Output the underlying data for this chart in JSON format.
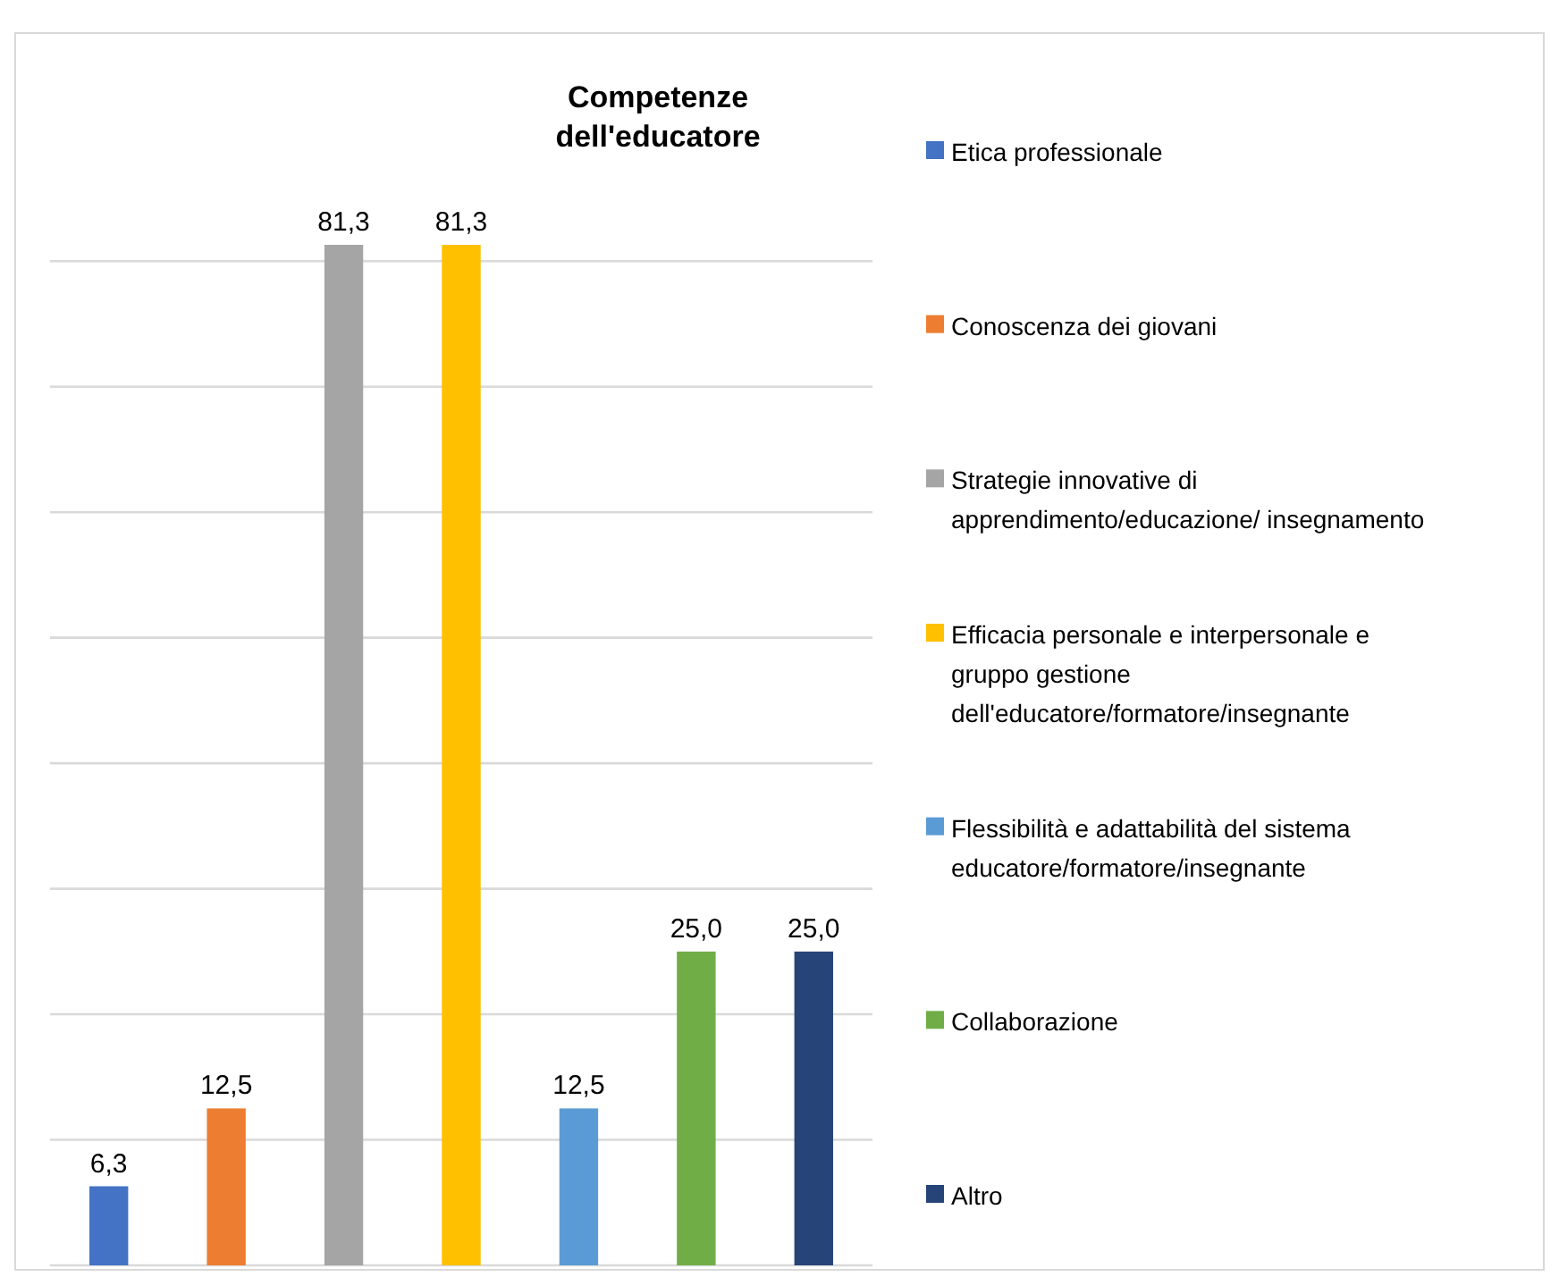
{
  "chart_data": {
    "type": "bar",
    "title": "Competenze dell'educatore",
    "categories": [
      null,
      null,
      null,
      null,
      null,
      null,
      null
    ],
    "stacked": true,
    "series": [
      {
        "name": "Etica professionale",
        "color": "#4472c4",
        "values": [
          6.3,
          null,
          null,
          null,
          null,
          null,
          null
        ],
        "value_labels": [
          "6,3",
          null,
          null,
          null,
          null,
          null,
          null
        ]
      },
      {
        "name": "Conoscenza dei giovani",
        "color": "#ed7d31",
        "values": [
          null,
          12.5,
          null,
          null,
          null,
          null,
          null
        ],
        "value_labels": [
          null,
          "12,5",
          null,
          null,
          null,
          null,
          null
        ]
      },
      {
        "name": "Strategie innovative di apprendimento/educazione/ insegnamento",
        "color": "#a5a5a5",
        "values": [
          null,
          null,
          81.3,
          null,
          null,
          null,
          null
        ],
        "value_labels": [
          null,
          null,
          "81,3",
          null,
          null,
          null,
          null
        ]
      },
      {
        "name": "Efficacia personale e interpersonale e gruppo gestione dell'educatore/formatore/insegnante",
        "color": "#ffc000",
        "values": [
          null,
          null,
          null,
          81.3,
          null,
          null,
          null
        ],
        "value_labels": [
          null,
          null,
          null,
          "81,3",
          null,
          null,
          null
        ]
      },
      {
        "name": "Flessibilità e adattabilità del sistema educatore/formatore/insegnante",
        "color": "#5b9bd5",
        "values": [
          null,
          null,
          null,
          null,
          12.5,
          null,
          null
        ],
        "value_labels": [
          null,
          null,
          null,
          null,
          "12,5",
          null,
          null
        ]
      },
      {
        "name": "Collaborazione",
        "color": "#70ad47",
        "values": [
          null,
          null,
          null,
          null,
          null,
          25.0,
          null
        ],
        "value_labels": [
          null,
          null,
          null,
          null,
          null,
          "25,0",
          null
        ]
      },
      {
        "name": "Altro",
        "color": "#264478",
        "values": [
          null,
          null,
          null,
          null,
          null,
          null,
          25.0
        ],
        "value_labels": [
          null,
          null,
          null,
          null,
          null,
          null,
          "25,0"
        ]
      }
    ],
    "grid": "y",
    "legend": "right"
  }
}
